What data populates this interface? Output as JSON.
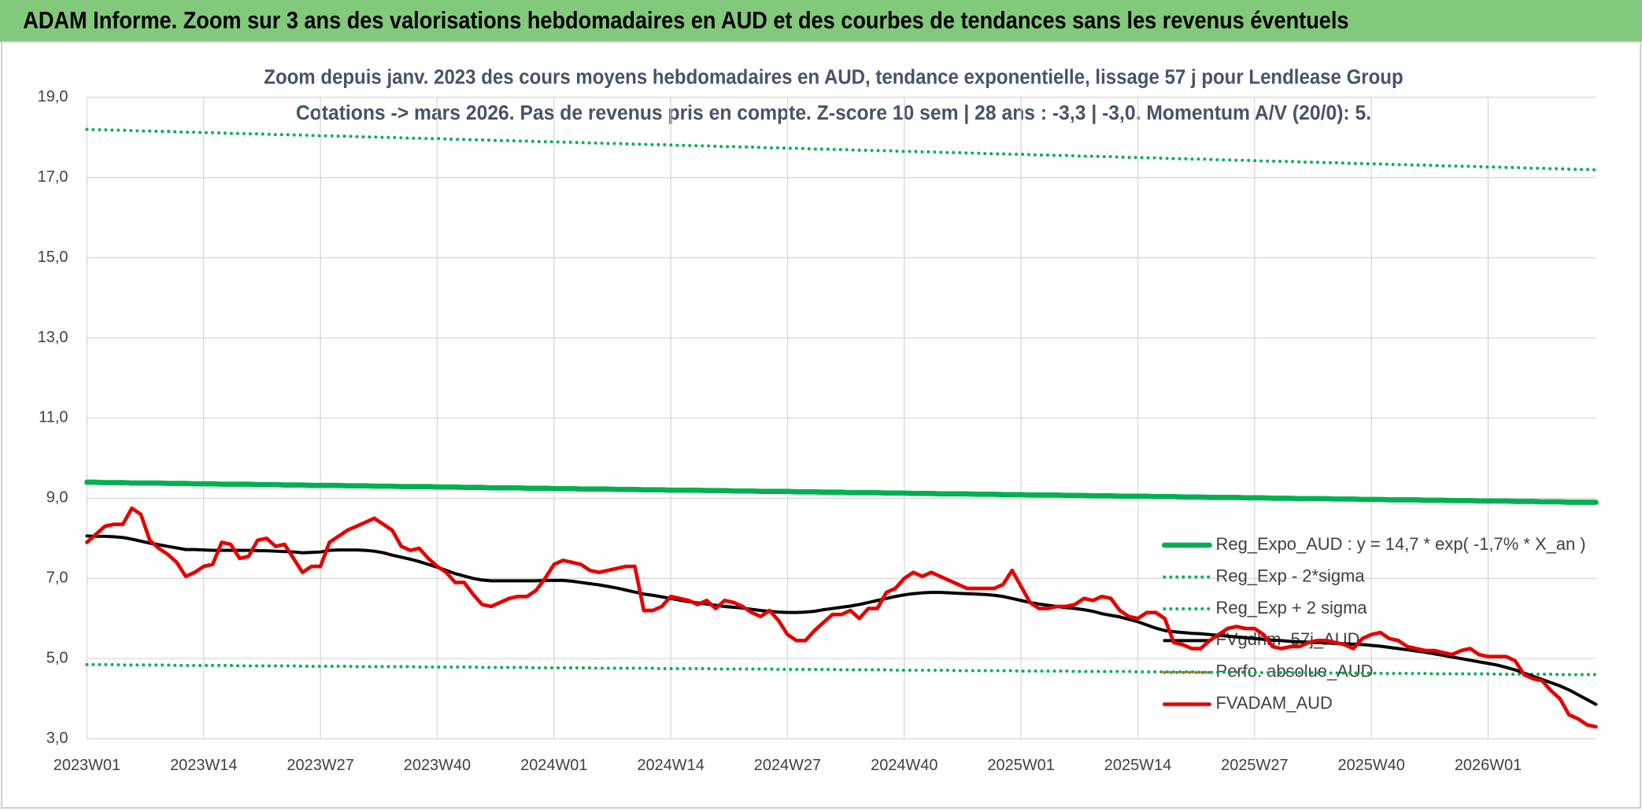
{
  "header": {
    "title": "ADAM Informe. Zoom sur 3 ans des valorisations hebdomadaires en AUD et des courbes de tendances sans les revenus éventuels"
  },
  "chart_data": {
    "type": "line",
    "title": "Zoom depuis janv. 2023 des cours moyens hebdomadaires en AUD, tendance exponentielle, lissage 57 j pour Lendlease Group",
    "subtitle": "Cotations -> mars 2026. Pas de revenus pris en compte. Z-score 10 sem | 28 ans : -3,3 | -3,0. Momentum A/V (20/0): 5.",
    "categories": [
      "2023W01",
      null,
      null,
      null,
      null,
      null,
      null,
      null,
      null,
      null,
      null,
      null,
      null,
      "2023W14",
      null,
      null,
      null,
      null,
      null,
      null,
      null,
      null,
      null,
      null,
      null,
      null,
      "2023W27",
      null,
      null,
      null,
      null,
      null,
      null,
      null,
      null,
      null,
      null,
      null,
      null,
      "2023W40",
      null,
      null,
      null,
      null,
      null,
      null,
      null,
      null,
      null,
      null,
      null,
      null,
      "2024W01",
      null,
      null,
      null,
      null,
      null,
      null,
      null,
      null,
      null,
      null,
      null,
      null,
      "2024W14",
      null,
      null,
      null,
      null,
      null,
      null,
      null,
      null,
      null,
      null,
      null,
      null,
      "2024W27",
      null,
      null,
      null,
      null,
      null,
      null,
      null,
      null,
      null,
      null,
      null,
      null,
      "2024W40",
      null,
      null,
      null,
      null,
      null,
      null,
      null,
      null,
      null,
      null,
      null,
      null,
      "2025W01",
      null,
      null,
      null,
      null,
      null,
      null,
      null,
      null,
      null,
      null,
      null,
      null,
      "2025W14",
      null,
      null,
      null,
      null,
      null,
      null,
      null,
      null,
      null,
      null,
      null,
      null,
      "2025W27",
      null,
      null,
      null,
      null,
      null,
      null,
      null,
      null,
      null,
      null,
      null,
      null,
      "2025W40",
      null,
      null,
      null,
      null,
      null,
      null,
      null,
      null,
      null,
      null,
      null,
      null,
      "2026W01",
      null,
      null,
      null,
      null,
      null,
      null,
      null,
      null,
      null,
      null,
      null,
      null
    ],
    "ylim": [
      3,
      19
    ],
    "yticks": [
      {
        "value": 3,
        "label": "3,0"
      },
      {
        "value": 5,
        "label": "5,0"
      },
      {
        "value": 7,
        "label": "7,0"
      },
      {
        "value": 9,
        "label": "9,0"
      },
      {
        "value": 11,
        "label": "11,0"
      },
      {
        "value": 13,
        "label": "13,0"
      },
      {
        "value": 15,
        "label": "15,0"
      },
      {
        "value": 17,
        "label": "17,0"
      },
      {
        "value": 19,
        "label": "19,0"
      }
    ],
    "grid": true,
    "legend": "right",
    "series": [
      {
        "name": "Reg_Expo_AUD : y = 14,7 * exp( -1,7% *  X_an )",
        "color": "#00b050",
        "style": "solid",
        "width": 5,
        "values": [
          9.4,
          9.4,
          9.39,
          9.39,
          9.39,
          9.38,
          9.38,
          9.38,
          9.38,
          9.37,
          9.37,
          9.37,
          9.36,
          9.36,
          9.36,
          9.35,
          9.35,
          9.35,
          9.35,
          9.34,
          9.34,
          9.34,
          9.33,
          9.33,
          9.33,
          9.32,
          9.32,
          9.32,
          9.32,
          9.31,
          9.31,
          9.31,
          9.3,
          9.3,
          9.3,
          9.29,
          9.29,
          9.29,
          9.29,
          9.28,
          9.28,
          9.28,
          9.27,
          9.27,
          9.27,
          9.26,
          9.26,
          9.26,
          9.26,
          9.25,
          9.25,
          9.25,
          9.24,
          9.24,
          9.24,
          9.23,
          9.23,
          9.23,
          9.23,
          9.22,
          9.22,
          9.22,
          9.21,
          9.21,
          9.21,
          9.2,
          9.2,
          9.2,
          9.2,
          9.19,
          9.19,
          9.19,
          9.18,
          9.18,
          9.18,
          9.17,
          9.17,
          9.17,
          9.17,
          9.16,
          9.16,
          9.16,
          9.15,
          9.15,
          9.15,
          9.14,
          9.14,
          9.14,
          9.14,
          9.13,
          9.13,
          9.13,
          9.12,
          9.12,
          9.12,
          9.11,
          9.11,
          9.11,
          9.11,
          9.1,
          9.1,
          9.1,
          9.09,
          9.09,
          9.09,
          9.08,
          9.08,
          9.08,
          9.08,
          9.07,
          9.07,
          9.07,
          9.06,
          9.06,
          9.06,
          9.05,
          9.05,
          9.05,
          9.05,
          9.04,
          9.04,
          9.04,
          9.03,
          9.03,
          9.03,
          9.02,
          9.02,
          9.02,
          9.02,
          9.01,
          9.01,
          9.01,
          9,
          9,
          9,
          8.99,
          8.99,
          8.99,
          8.99,
          8.98,
          8.98,
          8.98,
          8.97,
          8.97,
          8.97,
          8.96,
          8.96,
          8.96,
          8.96,
          8.95,
          8.95,
          8.95,
          8.94,
          8.94,
          8.94,
          8.93,
          8.93,
          8.93,
          8.93,
          8.92,
          8.92,
          8.92,
          8.91,
          8.91,
          8.91,
          8.9,
          8.9,
          8.9,
          8.9
        ]
      },
      {
        "name": "Reg_Exp - 2*sigma",
        "color": "#00b050",
        "style": "dotted",
        "width": 3,
        "values": [
          4.85,
          4.85,
          4.85,
          4.85,
          4.84,
          4.84,
          4.84,
          4.84,
          4.84,
          4.84,
          4.83,
          4.83,
          4.83,
          4.83,
          4.83,
          4.83,
          4.83,
          4.82,
          4.82,
          4.82,
          4.82,
          4.82,
          4.82,
          4.82,
          4.81,
          4.81,
          4.81,
          4.81,
          4.81,
          4.81,
          4.8,
          4.8,
          4.8,
          4.8,
          4.8,
          4.8,
          4.8,
          4.79,
          4.79,
          4.79,
          4.79,
          4.79,
          4.79,
          4.79,
          4.78,
          4.78,
          4.78,
          4.78,
          4.78,
          4.78,
          4.77,
          4.77,
          4.77,
          4.77,
          4.77,
          4.77,
          4.77,
          4.76,
          4.76,
          4.76,
          4.76,
          4.76,
          4.76,
          4.76,
          4.75,
          4.75,
          4.75,
          4.75,
          4.75,
          4.75,
          4.74,
          4.74,
          4.74,
          4.74,
          4.74,
          4.74,
          4.74,
          4.73,
          4.73,
          4.73,
          4.73,
          4.73,
          4.73,
          4.73,
          4.72,
          4.72,
          4.72,
          4.72,
          4.72,
          4.72,
          4.71,
          4.71,
          4.71,
          4.71,
          4.71,
          4.71,
          4.71,
          4.7,
          4.7,
          4.7,
          4.7,
          4.7,
          4.7,
          4.7,
          4.69,
          4.69,
          4.69,
          4.69,
          4.69,
          4.69,
          4.68,
          4.68,
          4.68,
          4.68,
          4.68,
          4.68,
          4.68,
          4.67,
          4.67,
          4.67,
          4.67,
          4.67,
          4.67,
          4.67,
          4.66,
          4.66,
          4.66,
          4.66,
          4.66,
          4.66,
          4.65,
          4.65,
          4.65,
          4.65,
          4.65,
          4.65,
          4.65,
          4.64,
          4.64,
          4.64,
          4.64,
          4.64,
          4.64,
          4.64,
          4.63,
          4.63,
          4.63,
          4.63,
          4.63,
          4.63,
          4.62,
          4.62,
          4.62,
          4.62,
          4.62,
          4.62,
          4.62,
          4.61,
          4.61,
          4.61,
          4.61,
          4.61,
          4.61,
          4.61,
          4.6,
          4.6,
          4.6,
          4.6,
          4.6
        ]
      },
      {
        "name": "Reg_Exp + 2 sigma",
        "color": "#00b050",
        "style": "dotted",
        "width": 3,
        "values": [
          18.2,
          18.19,
          18.19,
          18.18,
          18.18,
          18.17,
          18.16,
          18.16,
          18.15,
          18.15,
          18.14,
          18.13,
          18.13,
          18.12,
          18.12,
          18.11,
          18.1,
          18.1,
          18.09,
          18.09,
          18.08,
          18.07,
          18.07,
          18.06,
          18.06,
          18.05,
          18.04,
          18.04,
          18.03,
          18.03,
          18.02,
          18.01,
          18.01,
          18,
          18,
          17.99,
          17.98,
          17.98,
          17.97,
          17.97,
          17.96,
          17.95,
          17.95,
          17.94,
          17.94,
          17.93,
          17.92,
          17.92,
          17.91,
          17.91,
          17.9,
          17.89,
          17.89,
          17.88,
          17.88,
          17.87,
          17.86,
          17.86,
          17.85,
          17.85,
          17.84,
          17.83,
          17.83,
          17.82,
          17.82,
          17.81,
          17.8,
          17.8,
          17.79,
          17.79,
          17.78,
          17.77,
          17.77,
          17.76,
          17.76,
          17.75,
          17.74,
          17.74,
          17.73,
          17.73,
          17.72,
          17.71,
          17.71,
          17.7,
          17.7,
          17.69,
          17.68,
          17.68,
          17.67,
          17.67,
          17.66,
          17.65,
          17.65,
          17.64,
          17.64,
          17.63,
          17.62,
          17.62,
          17.61,
          17.61,
          17.6,
          17.59,
          17.59,
          17.58,
          17.58,
          17.57,
          17.56,
          17.56,
          17.55,
          17.55,
          17.54,
          17.53,
          17.53,
          17.52,
          17.52,
          17.51,
          17.5,
          17.5,
          17.49,
          17.49,
          17.48,
          17.47,
          17.47,
          17.46,
          17.46,
          17.45,
          17.44,
          17.44,
          17.43,
          17.43,
          17.42,
          17.41,
          17.41,
          17.4,
          17.4,
          17.39,
          17.38,
          17.38,
          17.37,
          17.37,
          17.36,
          17.35,
          17.35,
          17.34,
          17.34,
          17.33,
          17.32,
          17.32,
          17.31,
          17.31,
          17.3,
          17.29,
          17.29,
          17.28,
          17.28,
          17.27,
          17.26,
          17.26,
          17.25,
          17.25,
          17.24,
          17.23,
          17.23,
          17.22,
          17.22,
          17.21,
          17.2,
          17.2,
          17.19
        ]
      },
      {
        "name": "FVgdhm_57j_AUD",
        "color": "#000000",
        "style": "solid",
        "width": 3,
        "values": [
          8.06,
          8.05,
          8.05,
          8.04,
          8.02,
          7.98,
          7.93,
          7.88,
          7.84,
          7.8,
          7.76,
          7.72,
          7.72,
          7.71,
          7.7,
          7.7,
          7.7,
          7.7,
          7.7,
          7.69,
          7.69,
          7.68,
          7.67,
          7.66,
          7.64,
          7.65,
          7.66,
          7.7,
          7.71,
          7.71,
          7.71,
          7.7,
          7.68,
          7.64,
          7.58,
          7.53,
          7.48,
          7.42,
          7.35,
          7.28,
          7.2,
          7.12,
          7.06,
          7,
          6.96,
          6.94,
          6.94,
          6.94,
          6.94,
          6.94,
          6.94,
          6.95,
          6.95,
          6.95,
          6.93,
          6.9,
          6.87,
          6.84,
          6.8,
          6.76,
          6.71,
          6.66,
          6.61,
          6.58,
          6.54,
          6.5,
          6.46,
          6.42,
          6.39,
          6.36,
          6.33,
          6.3,
          6.28,
          6.26,
          6.23,
          6.2,
          6.18,
          6.16,
          6.15,
          6.15,
          6.16,
          6.18,
          6.22,
          6.25,
          6.28,
          6.31,
          6.35,
          6.4,
          6.45,
          6.5,
          6.55,
          6.59,
          6.62,
          6.64,
          6.65,
          6.65,
          6.64,
          6.63,
          6.62,
          6.61,
          6.6,
          6.58,
          6.55,
          6.5,
          6.45,
          6.4,
          6.36,
          6.33,
          6.3,
          6.27,
          6.25,
          6.22,
          6.18,
          6.12,
          6.08,
          6.04,
          5.98,
          5.92,
          5.84,
          5.76,
          5.7,
          5.67,
          5.65,
          5.63,
          5.62,
          5.6,
          5.58,
          5.56,
          5.54,
          5.52,
          5.5,
          5.48,
          5.46,
          5.45,
          5.43,
          5.42,
          5.41,
          5.4,
          5.39,
          5.38,
          5.37,
          5.36,
          5.35,
          5.33,
          5.31,
          5.28,
          5.25,
          5.22,
          5.19,
          5.16,
          5.12,
          5.08,
          5.04,
          5,
          4.96,
          4.92,
          4.88,
          4.84,
          4.78,
          4.72,
          4.64,
          4.56,
          4.48,
          4.4,
          4.32,
          4.22,
          4.1,
          3.98,
          3.86
        ]
      },
      {
        "name": "Perfo. absolue_AUD",
        "color": "#c55a11",
        "style": "dotted",
        "width": 3
      },
      {
        "name": "FVADAM_AUD",
        "color": "#e60000",
        "style": "solid",
        "width": 3.5,
        "values": [
          7.9,
          8.1,
          8.3,
          8.35,
          8.35,
          8.75,
          8.6,
          7.95,
          7.75,
          7.6,
          7.4,
          7.05,
          7.15,
          7.3,
          7.35,
          7.9,
          7.85,
          7.5,
          7.55,
          7.95,
          8,
          7.8,
          7.85,
          7.5,
          7.15,
          7.3,
          7.3,
          7.9,
          8.05,
          8.2,
          8.3,
          8.4,
          8.5,
          8.35,
          8.2,
          7.8,
          7.7,
          7.75,
          7.5,
          7.3,
          7.15,
          6.9,
          6.9,
          6.6,
          6.35,
          6.3,
          6.4,
          6.5,
          6.55,
          6.55,
          6.7,
          7,
          7.35,
          7.45,
          7.4,
          7.35,
          7.2,
          7.15,
          7.2,
          7.25,
          7.3,
          7.3,
          6.2,
          6.2,
          6.3,
          6.55,
          6.5,
          6.45,
          6.35,
          6.45,
          6.25,
          6.45,
          6.4,
          6.3,
          6.15,
          6.05,
          6.2,
          5.95,
          5.6,
          5.45,
          5.45,
          5.7,
          5.9,
          6.1,
          6.1,
          6.2,
          6,
          6.25,
          6.25,
          6.65,
          6.75,
          7,
          7.15,
          7.05,
          7.15,
          7.05,
          6.95,
          6.85,
          6.75,
          6.75,
          6.75,
          6.75,
          6.85,
          7.2,
          6.8,
          6.4,
          6.25,
          6.25,
          6.3,
          6.3,
          6.35,
          6.5,
          6.45,
          6.55,
          6.5,
          6.2,
          6.05,
          6,
          6.15,
          6.15,
          6,
          5.4,
          5.35,
          5.25,
          5.25,
          5.45,
          5.6,
          5.75,
          5.8,
          5.75,
          5.75,
          5.6,
          5.3,
          5.25,
          5.3,
          5.3,
          5.4,
          5.45,
          5.45,
          5.4,
          5.35,
          5.25,
          5.5,
          5.6,
          5.65,
          5.5,
          5.45,
          5.3,
          5.25,
          5.2,
          5.2,
          5.15,
          5.1,
          5.2,
          5.25,
          5.1,
          5.05,
          5.05,
          5.05,
          4.95,
          4.6,
          4.5,
          4.45,
          4.2,
          4,
          3.6,
          3.5,
          3.35,
          3.3
        ]
      }
    ]
  }
}
